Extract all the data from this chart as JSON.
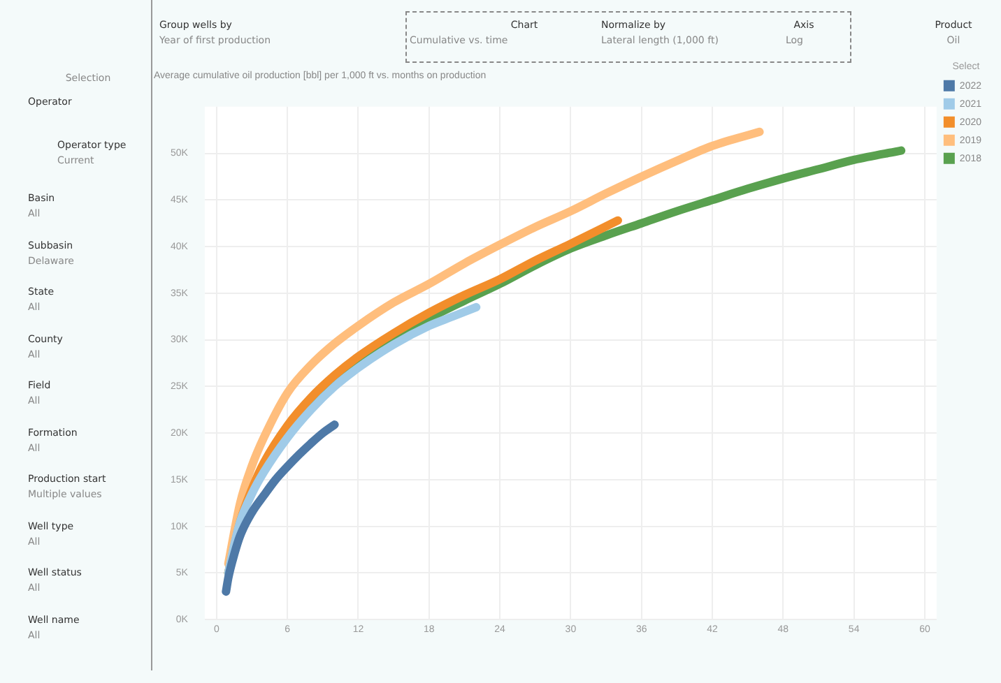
{
  "chart_data": {
    "type": "line",
    "title": "Average cumulative oil production [bbl] per 1,000 ft vs. months on production",
    "legend_title": "Select",
    "legend": "right",
    "grid": true,
    "marker": "none",
    "line_style": "solid",
    "xlim": [
      -1,
      61
    ],
    "xticks": [
      0,
      6,
      12,
      18,
      24,
      30,
      36,
      42,
      48,
      54,
      60
    ],
    "ylim": [
      0,
      55000
    ],
    "yticks": [
      {
        "value": 0,
        "label": "0K"
      },
      {
        "value": 5000,
        "label": "5K"
      },
      {
        "value": 10000,
        "label": "10K"
      },
      {
        "value": 15000,
        "label": "15K"
      },
      {
        "value": 20000,
        "label": "20K"
      },
      {
        "value": 25000,
        "label": "25K"
      },
      {
        "value": 30000,
        "label": "30K"
      },
      {
        "value": 35000,
        "label": "35K"
      },
      {
        "value": 40000,
        "label": "40K"
      },
      {
        "value": 45000,
        "label": "45K"
      },
      {
        "value": 50000,
        "label": "50K"
      }
    ],
    "series": [
      {
        "name": "2022",
        "color": "#4e79a7",
        "x": [
          0.8,
          1,
          1.5,
          2,
          3,
          4,
          5,
          6,
          7,
          8,
          9,
          10
        ],
        "values": [
          3000,
          4500,
          7000,
          9000,
          11500,
          13300,
          15000,
          16400,
          17700,
          18900,
          20000,
          20900
        ]
      },
      {
        "name": "2021",
        "color": "#a0cbe8",
        "x": [
          1,
          1.5,
          2,
          3,
          4,
          6,
          8,
          10,
          12,
          15,
          18,
          20,
          22
        ],
        "values": [
          5000,
          8000,
          10500,
          13500,
          15800,
          19500,
          22500,
          25000,
          27000,
          29500,
          31500,
          32500,
          33500
        ]
      },
      {
        "name": "2020",
        "color": "#f28e2b",
        "x": [
          1,
          2,
          3,
          4,
          6,
          8,
          10,
          12,
          15,
          18,
          21,
          24,
          27,
          30,
          34
        ],
        "values": [
          5000,
          10500,
          14000,
          16800,
          20800,
          23800,
          26200,
          28200,
          30700,
          32900,
          34800,
          36500,
          38500,
          40300,
          42800
        ]
      },
      {
        "name": "2019",
        "color": "#ffbe7d",
        "x": [
          1,
          2,
          3,
          4,
          6,
          8,
          10,
          12,
          15,
          18,
          21,
          24,
          27,
          30,
          33,
          36,
          39,
          42,
          46
        ],
        "values": [
          6000,
          12500,
          16500,
          19500,
          24300,
          27300,
          29600,
          31500,
          34000,
          36000,
          38200,
          40200,
          42100,
          43800,
          45700,
          47500,
          49200,
          50800,
          52300
        ]
      },
      {
        "name": "2018",
        "color": "#59a14f",
        "x": [
          1,
          2,
          3,
          4,
          6,
          8,
          10,
          12,
          15,
          18,
          21,
          24,
          27,
          30,
          33,
          36,
          39,
          42,
          45,
          48,
          51,
          54,
          58
        ],
        "values": [
          5000,
          10300,
          13800,
          null,
          null,
          23300,
          25700,
          27500,
          30100,
          32300,
          34200,
          36000,
          38000,
          39800,
          41200,
          42500,
          43800,
          45000,
          46200,
          47300,
          48300,
          49300,
          50300
        ]
      }
    ],
    "annotations": [
      "Group wells by",
      "Year of first production",
      "Chart",
      "Cumulative vs. time",
      "Normalize by",
      "Lateral length (1,000 ft)",
      "Axis",
      "Log",
      "Product",
      "Oil",
      "Selection",
      "Operator",
      "Operator type",
      "Current",
      "Basin",
      "All",
      "Subbasin",
      "Delaware",
      "State",
      "All",
      "County",
      "All",
      "Field",
      "All",
      "Formation",
      "All",
      "Production start",
      "Multiple values",
      "Well type",
      "All",
      "Well status",
      "All",
      "Well name",
      "All"
    ]
  }
}
